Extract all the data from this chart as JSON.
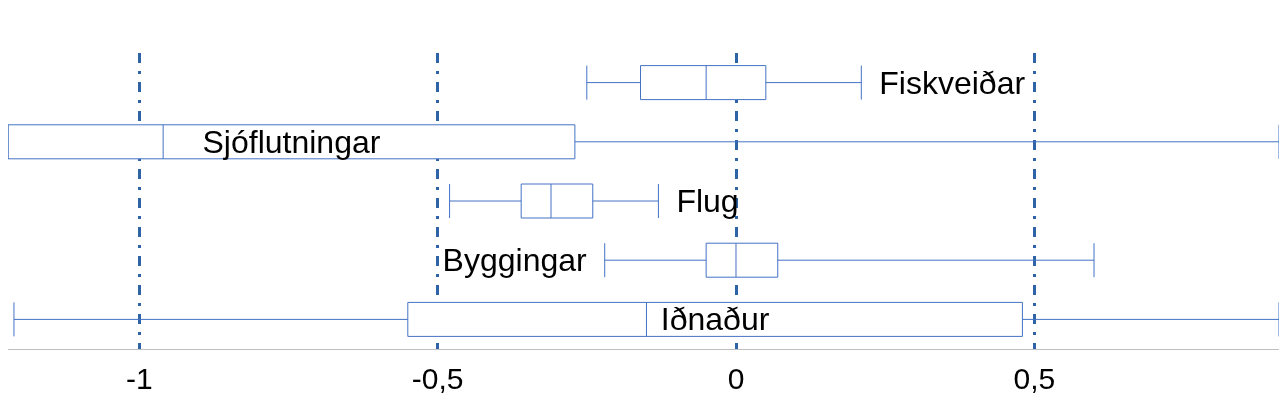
{
  "chart_data": {
    "type": "box",
    "orientation": "horizontal",
    "categories": [
      "Fiskveiðar",
      "Sjóflutningar",
      "Flug",
      "Byggingar",
      "Iðnaður"
    ],
    "boxes": [
      {
        "low": -0.25,
        "q1": -0.16,
        "median": -0.05,
        "q3": 0.05,
        "high": 0.21
      },
      {
        "low": -1.22,
        "q1": -1.22,
        "median": -0.96,
        "q3": -0.27,
        "high": 0.91
      },
      {
        "low": -0.48,
        "q1": -0.36,
        "median": -0.31,
        "q3": -0.24,
        "high": -0.13
      },
      {
        "low": -0.22,
        "q1": -0.05,
        "median": 0,
        "q3": 0.07,
        "high": 0.6
      },
      {
        "low": -1.21,
        "q1": -0.55,
        "median": -0.15,
        "q3": 0.48,
        "high": 0.91
      }
    ],
    "color": "#4472c4",
    "xlim": [
      -1.22,
      0.91
    ],
    "xticks": [
      {
        "value": -1,
        "label": "-1"
      },
      {
        "value": -0.5,
        "label": "-0,5"
      },
      {
        "value": 0,
        "label": "0"
      },
      {
        "value": 0.5,
        "label": "0,5"
      }
    ],
    "grid": "x",
    "tick_labels": "x"
  }
}
